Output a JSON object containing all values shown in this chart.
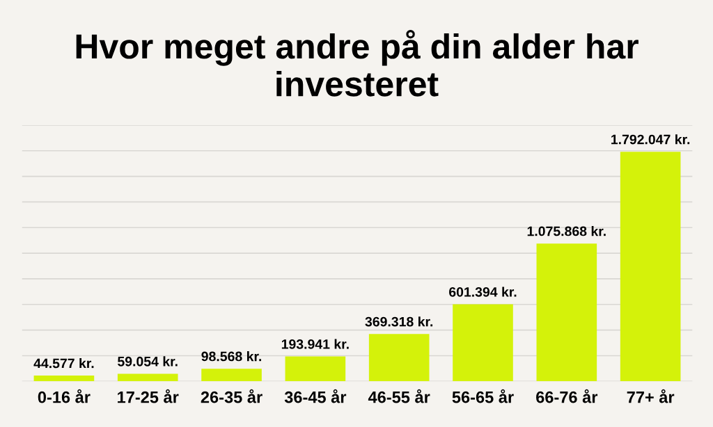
{
  "chart_data": {
    "type": "bar",
    "title": "Hvor meget andre på din alder har investeret",
    "categories": [
      "0-16 år",
      "17-25 år",
      "26-35 år",
      "36-45 år",
      "46-55 år",
      "56-65 år",
      "66-76 år",
      "77+ år"
    ],
    "values": [
      44577,
      59054,
      98568,
      193941,
      369318,
      601394,
      1075868,
      1792047
    ],
    "value_labels": [
      "44.577 kr.",
      "59.054 kr.",
      "98.568 kr.",
      "193.941 kr.",
      "369.318 kr.",
      "601.394 kr.",
      "1.075.868 kr.",
      "1.792.047 kr."
    ],
    "color": "#d4f20a",
    "ylim": [
      0,
      2000000
    ],
    "yticks": [
      {
        "value": 0,
        "label": null
      },
      {
        "value": 200000,
        "label": null
      },
      {
        "value": 400000,
        "label": null
      },
      {
        "value": 600000,
        "label": null
      },
      {
        "value": 800000,
        "label": null
      },
      {
        "value": 1000000,
        "label": null
      },
      {
        "value": 1200000,
        "label": null
      },
      {
        "value": 1400000,
        "label": null
      },
      {
        "value": 1600000,
        "label": null
      },
      {
        "value": 1800000,
        "label": null
      },
      {
        "value": 2000000,
        "label": null
      }
    ],
    "grid": "y",
    "tick_labels": "x"
  }
}
